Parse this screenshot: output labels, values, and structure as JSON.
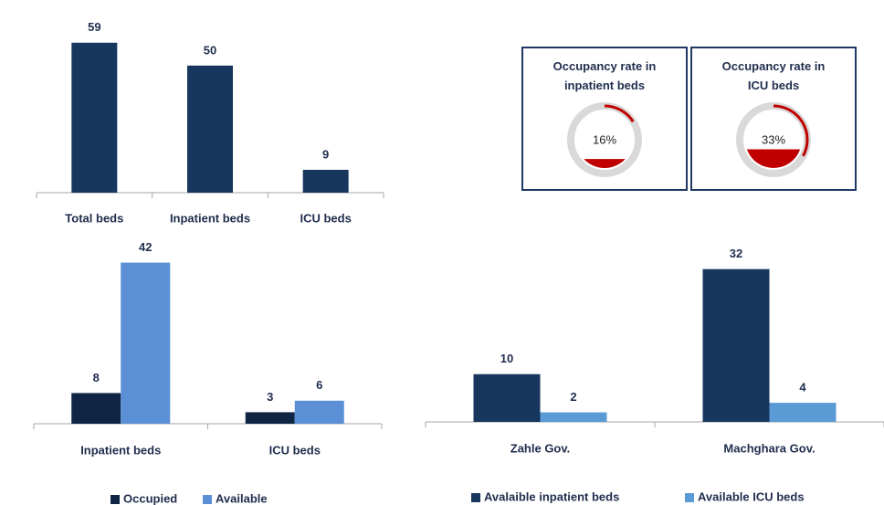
{
  "chart_data": [
    {
      "type": "bar",
      "categories": [
        "Total beds",
        "Inpatient beds",
        "ICU beds"
      ],
      "values": [
        59,
        50,
        9
      ],
      "color": "#17375e",
      "ylim": [
        0,
        60
      ]
    },
    {
      "type": "gauge",
      "title": "Occupancy rate in inpatient beds",
      "value": 16,
      "value_label": "16%",
      "color": "#c00000"
    },
    {
      "type": "gauge",
      "title": "Occupancy rate in ICU beds",
      "value": 33,
      "value_label": "33%",
      "color": "#c00000"
    },
    {
      "type": "grouped_bar",
      "categories": [
        "Inpatient beds",
        "ICU beds"
      ],
      "series": [
        {
          "name": "Occupied",
          "color": "#0f2544",
          "values": [
            8,
            3
          ]
        },
        {
          "name": "Available",
          "color": "#5b8fd6",
          "values": [
            42,
            6
          ]
        }
      ],
      "ylim": [
        0,
        45
      ]
    },
    {
      "type": "grouped_bar",
      "categories": [
        "Zahle Gov.",
        "Machghara Gov."
      ],
      "series": [
        {
          "name": "Avalaible inpatient beds",
          "color": "#17375e",
          "values": [
            10,
            32
          ]
        },
        {
          "name": "Available ICU beds",
          "color": "#5b9bd5",
          "values": [
            2,
            4
          ]
        }
      ],
      "ylim": [
        0,
        35
      ]
    }
  ]
}
